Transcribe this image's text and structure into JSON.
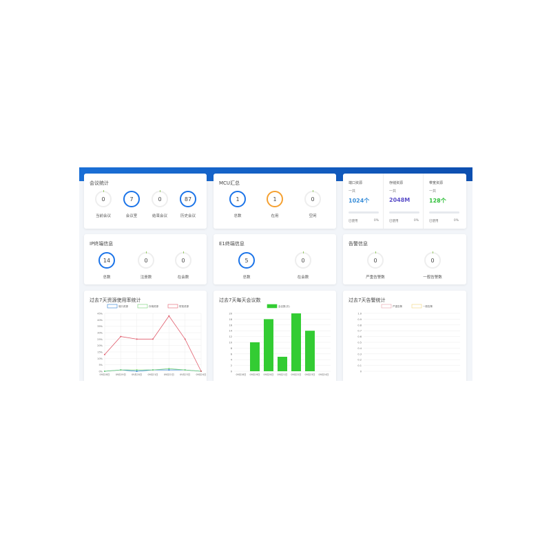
{
  "meeting": {
    "title": "会议统计",
    "items": [
      {
        "label": "当前会议",
        "value": "0"
      },
      {
        "label": "会议室",
        "value": "7"
      },
      {
        "label": "结束会议",
        "value": "0"
      },
      {
        "label": "历史会议",
        "value": "87"
      }
    ]
  },
  "mcu": {
    "title": "MCU汇总",
    "items": [
      {
        "label": "总数",
        "value": "1"
      },
      {
        "label": "在用",
        "value": "1"
      },
      {
        "label": "空闲",
        "value": "0"
      }
    ]
  },
  "resources": [
    {
      "name": "端口资源",
      "sub": "一共",
      "value": "1024个",
      "color": "#3b8fd9",
      "used_label": "已使用",
      "used": "0%"
    },
    {
      "name": "存储资源",
      "sub": "一共",
      "value": "2048M",
      "color": "#5b4fc8",
      "used_label": "已使用",
      "used": "0%"
    },
    {
      "name": "带宽资源",
      "sub": "一共",
      "value": "128个",
      "color": "#2fbf3a",
      "used_label": "已使用",
      "used": "0%"
    }
  ],
  "ip": {
    "title": "IP终端信息",
    "items": [
      {
        "label": "总数",
        "value": "14"
      },
      {
        "label": "注册数",
        "value": "0"
      },
      {
        "label": "在会数",
        "value": "0"
      }
    ]
  },
  "e1": {
    "title": "E1终端信息",
    "items": [
      {
        "label": "总数",
        "value": "5"
      },
      {
        "label": "在会数",
        "value": "0"
      }
    ]
  },
  "alarm": {
    "title": "告警信息",
    "items": [
      {
        "label": "严重告警数",
        "value": "0"
      },
      {
        "label": "一般告警数",
        "value": "0"
      }
    ]
  },
  "chart_data": [
    {
      "type": "line",
      "title": "过去7天资源使用率统计",
      "categories": [
        "09月18日",
        "09月19日",
        "09月20日",
        "09月21日",
        "09月22日",
        "09月23日",
        "09月24日"
      ],
      "ylim": [
        0,
        45
      ],
      "yticks": [
        "0%",
        "5%",
        "10%",
        "15%",
        "20%",
        "25%",
        "30%",
        "35%",
        "40%",
        "45%"
      ],
      "legend": "top",
      "grid": true,
      "series": [
        {
          "name": "端口资源",
          "color": "#2a7fd4",
          "values": [
            0,
            1,
            0,
            1,
            1,
            1,
            0
          ]
        },
        {
          "name": "存储资源",
          "color": "#6fd06f",
          "values": [
            0,
            1,
            1,
            1,
            2,
            1,
            0
          ]
        },
        {
          "name": "带宽资源",
          "color": "#e05a6a",
          "values": [
            13,
            27,
            25,
            25,
            43,
            25,
            0
          ]
        }
      ]
    },
    {
      "type": "bar",
      "title": "过去7天每天会议数",
      "categories": [
        "09月18日",
        "09月19日",
        "09月20日",
        "09月21日",
        "09月22日",
        "09月23日",
        "09月24日"
      ],
      "ylim": [
        0,
        20
      ],
      "yticks": [
        "0",
        "2",
        "4",
        "6",
        "8",
        "10",
        "12",
        "14",
        "16",
        "18",
        "20"
      ],
      "legend": "top",
      "grid": true,
      "series": [
        {
          "name": "会议数(次)",
          "color": "#33cc33",
          "values": [
            0,
            10,
            18,
            5,
            20,
            14,
            0
          ]
        }
      ]
    },
    {
      "type": "line",
      "title": "过去7天告警统计",
      "categories": [],
      "ylim": [
        0,
        1
      ],
      "yticks": [
        "0",
        "0.1",
        "0.2",
        "0.3",
        "0.4",
        "0.5",
        "0.6",
        "0.7",
        "0.8",
        "0.9",
        "1.0"
      ],
      "legend": "top",
      "grid": true,
      "series": [
        {
          "name": "严重告警",
          "color": "#e8a0a8",
          "values": []
        },
        {
          "name": "一般告警",
          "color": "#f2d27a",
          "values": []
        }
      ]
    }
  ]
}
